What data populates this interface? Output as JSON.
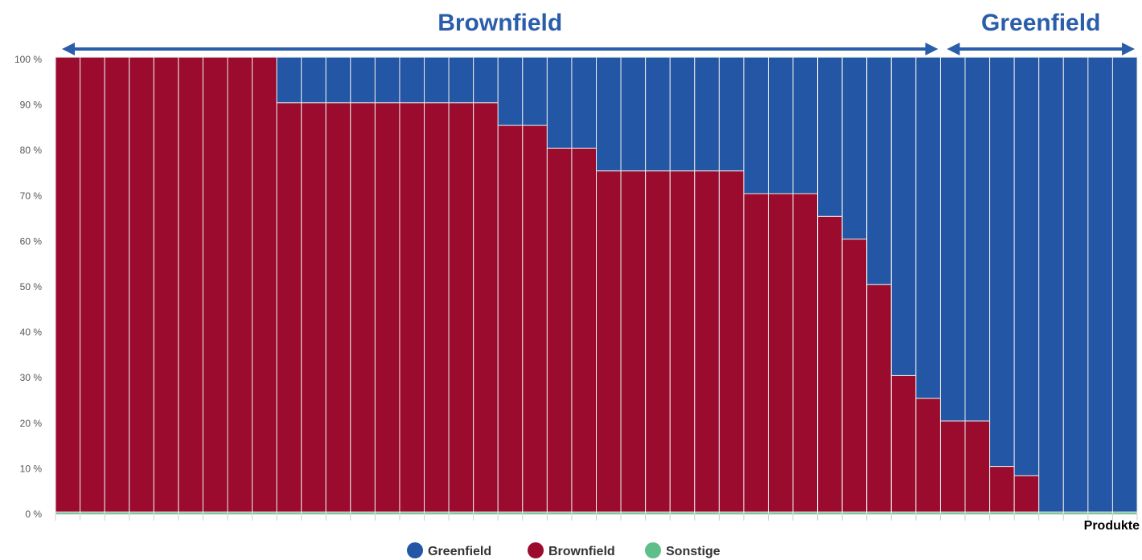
{
  "chart_data": {
    "type": "bar",
    "stacked": true,
    "normalized": true,
    "xlabel": "Produkte",
    "ylabel": "",
    "ylim": [
      0,
      100
    ],
    "yticks": [
      "0 %",
      "10 %",
      "20 %",
      "30 %",
      "40 %",
      "50 %",
      "60 %",
      "70 %",
      "80 %",
      "90 %",
      "100 %"
    ],
    "bar_count": 44,
    "series": [
      {
        "name": "Sonstige",
        "color": "#5fbf8a",
        "values": [
          0.5,
          0.5,
          0.5,
          0.5,
          0.5,
          0.5,
          0.5,
          0.5,
          0.5,
          0.5,
          0.5,
          0.5,
          0.5,
          0.5,
          0.5,
          0.5,
          0.5,
          0.5,
          0.5,
          0.5,
          0.5,
          0.5,
          0.5,
          0.5,
          0.5,
          0.5,
          0.5,
          0.5,
          0.5,
          0.5,
          0.5,
          0.5,
          0.5,
          0.5,
          0.5,
          0.5,
          0.5,
          0.5,
          0.5,
          0.5,
          0.5,
          0.5,
          0.5,
          0.5
        ]
      },
      {
        "name": "Brownfield",
        "color": "#9b0b2e",
        "values": [
          100,
          100,
          100,
          100,
          100,
          100,
          100,
          100,
          100,
          90,
          90,
          90,
          90,
          90,
          90,
          90,
          90,
          90,
          85,
          85,
          80,
          80,
          75,
          75,
          75,
          75,
          75,
          75,
          70,
          70,
          70,
          65,
          60,
          50,
          30,
          25,
          20,
          20,
          10,
          8,
          0,
          0,
          0,
          0
        ]
      },
      {
        "name": "Greenfield",
        "color": "#2356a4",
        "values": [
          0,
          0,
          0,
          0,
          0,
          0,
          0,
          0,
          0,
          10,
          10,
          10,
          10,
          10,
          10,
          10,
          10,
          10,
          15,
          15,
          20,
          20,
          25,
          25,
          25,
          25,
          25,
          25,
          30,
          30,
          30,
          35,
          40,
          50,
          70,
          75,
          80,
          80,
          90,
          92,
          100,
          100,
          100,
          100
        ]
      }
    ],
    "annotations": [
      {
        "label": "Brownfield",
        "from_bar": 1,
        "to_bar": 36,
        "color": "#2a5daa"
      },
      {
        "label": "Greenfield",
        "from_bar": 37,
        "to_bar": 44,
        "color": "#2a5daa"
      }
    ],
    "legend": {
      "position": "bottom-center",
      "items": [
        {
          "label": "Greenfield",
          "color": "#2356a4"
        },
        {
          "label": "Brownfield",
          "color": "#9b0b2e"
        },
        {
          "label": "Sonstige",
          "color": "#5fbf8a"
        }
      ]
    },
    "grid": false
  }
}
